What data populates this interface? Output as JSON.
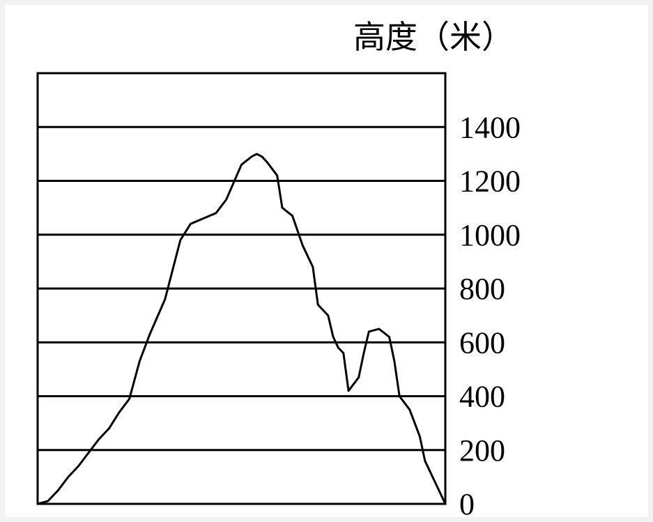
{
  "chart_data": {
    "type": "area",
    "ylabel": "高度（米）",
    "y_ticks": [
      "1400",
      "1200",
      "1000",
      "800",
      "600",
      "400",
      "200",
      "0"
    ],
    "ylim": [
      0,
      1600
    ],
    "grid": true,
    "profile": [
      [
        0,
        0
      ],
      [
        2,
        10
      ],
      [
        4,
        50
      ],
      [
        6,
        100
      ],
      [
        8,
        140
      ],
      [
        10,
        190
      ],
      [
        12,
        240
      ],
      [
        14,
        280
      ],
      [
        16,
        340
      ],
      [
        18,
        390
      ],
      [
        20,
        530
      ],
      [
        22,
        630
      ],
      [
        25,
        760
      ],
      [
        28,
        980
      ],
      [
        30,
        1040
      ],
      [
        35,
        1080
      ],
      [
        37,
        1130
      ],
      [
        40,
        1260
      ],
      [
        42,
        1290
      ],
      [
        43,
        1300
      ],
      [
        44,
        1290
      ],
      [
        45,
        1270
      ],
      [
        47,
        1220
      ],
      [
        48,
        1100
      ],
      [
        50,
        1070
      ],
      [
        52,
        960
      ],
      [
        53,
        920
      ],
      [
        54,
        880
      ],
      [
        55,
        740
      ],
      [
        57,
        700
      ],
      [
        58,
        620
      ],
      [
        59,
        580
      ],
      [
        60,
        560
      ],
      [
        61,
        420
      ],
      [
        63,
        470
      ],
      [
        64,
        560
      ],
      [
        65,
        640
      ],
      [
        67,
        650
      ],
      [
        69,
        620
      ],
      [
        70,
        530
      ],
      [
        71,
        400
      ],
      [
        73,
        350
      ],
      [
        75,
        250
      ],
      [
        76,
        160
      ],
      [
        78,
        80
      ],
      [
        80,
        0
      ]
    ]
  }
}
